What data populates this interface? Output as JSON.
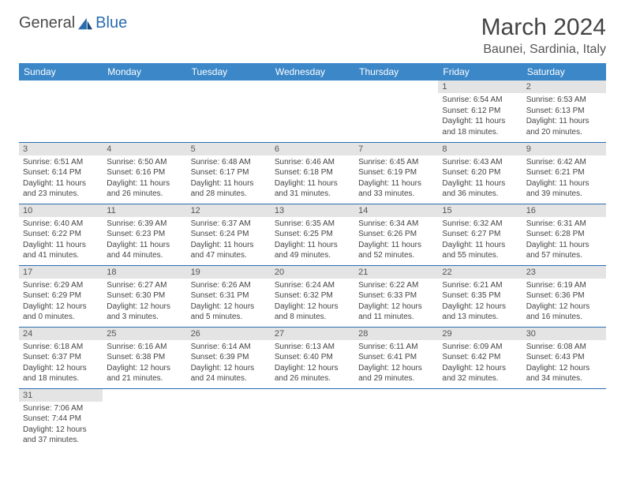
{
  "logo": {
    "part1": "General",
    "part2": "Blue"
  },
  "title": "March 2024",
  "location": "Baunei, Sardinia, Italy",
  "colors": {
    "header_bg": "#3b87c8",
    "header_text": "#ffffff",
    "daynum_bg": "#e4e4e4",
    "border": "#2a6cb0",
    "logo_blue": "#2a6cb0"
  },
  "day_headers": [
    "Sunday",
    "Monday",
    "Tuesday",
    "Wednesday",
    "Thursday",
    "Friday",
    "Saturday"
  ],
  "weeks": [
    [
      null,
      null,
      null,
      null,
      null,
      {
        "n": "1",
        "sr": "Sunrise: 6:54 AM",
        "ss": "Sunset: 6:12 PM",
        "dl1": "Daylight: 11 hours",
        "dl2": "and 18 minutes."
      },
      {
        "n": "2",
        "sr": "Sunrise: 6:53 AM",
        "ss": "Sunset: 6:13 PM",
        "dl1": "Daylight: 11 hours",
        "dl2": "and 20 minutes."
      }
    ],
    [
      {
        "n": "3",
        "sr": "Sunrise: 6:51 AM",
        "ss": "Sunset: 6:14 PM",
        "dl1": "Daylight: 11 hours",
        "dl2": "and 23 minutes."
      },
      {
        "n": "4",
        "sr": "Sunrise: 6:50 AM",
        "ss": "Sunset: 6:16 PM",
        "dl1": "Daylight: 11 hours",
        "dl2": "and 26 minutes."
      },
      {
        "n": "5",
        "sr": "Sunrise: 6:48 AM",
        "ss": "Sunset: 6:17 PM",
        "dl1": "Daylight: 11 hours",
        "dl2": "and 28 minutes."
      },
      {
        "n": "6",
        "sr": "Sunrise: 6:46 AM",
        "ss": "Sunset: 6:18 PM",
        "dl1": "Daylight: 11 hours",
        "dl2": "and 31 minutes."
      },
      {
        "n": "7",
        "sr": "Sunrise: 6:45 AM",
        "ss": "Sunset: 6:19 PM",
        "dl1": "Daylight: 11 hours",
        "dl2": "and 33 minutes."
      },
      {
        "n": "8",
        "sr": "Sunrise: 6:43 AM",
        "ss": "Sunset: 6:20 PM",
        "dl1": "Daylight: 11 hours",
        "dl2": "and 36 minutes."
      },
      {
        "n": "9",
        "sr": "Sunrise: 6:42 AM",
        "ss": "Sunset: 6:21 PM",
        "dl1": "Daylight: 11 hours",
        "dl2": "and 39 minutes."
      }
    ],
    [
      {
        "n": "10",
        "sr": "Sunrise: 6:40 AM",
        "ss": "Sunset: 6:22 PM",
        "dl1": "Daylight: 11 hours",
        "dl2": "and 41 minutes."
      },
      {
        "n": "11",
        "sr": "Sunrise: 6:39 AM",
        "ss": "Sunset: 6:23 PM",
        "dl1": "Daylight: 11 hours",
        "dl2": "and 44 minutes."
      },
      {
        "n": "12",
        "sr": "Sunrise: 6:37 AM",
        "ss": "Sunset: 6:24 PM",
        "dl1": "Daylight: 11 hours",
        "dl2": "and 47 minutes."
      },
      {
        "n": "13",
        "sr": "Sunrise: 6:35 AM",
        "ss": "Sunset: 6:25 PM",
        "dl1": "Daylight: 11 hours",
        "dl2": "and 49 minutes."
      },
      {
        "n": "14",
        "sr": "Sunrise: 6:34 AM",
        "ss": "Sunset: 6:26 PM",
        "dl1": "Daylight: 11 hours",
        "dl2": "and 52 minutes."
      },
      {
        "n": "15",
        "sr": "Sunrise: 6:32 AM",
        "ss": "Sunset: 6:27 PM",
        "dl1": "Daylight: 11 hours",
        "dl2": "and 55 minutes."
      },
      {
        "n": "16",
        "sr": "Sunrise: 6:31 AM",
        "ss": "Sunset: 6:28 PM",
        "dl1": "Daylight: 11 hours",
        "dl2": "and 57 minutes."
      }
    ],
    [
      {
        "n": "17",
        "sr": "Sunrise: 6:29 AM",
        "ss": "Sunset: 6:29 PM",
        "dl1": "Daylight: 12 hours",
        "dl2": "and 0 minutes."
      },
      {
        "n": "18",
        "sr": "Sunrise: 6:27 AM",
        "ss": "Sunset: 6:30 PM",
        "dl1": "Daylight: 12 hours",
        "dl2": "and 3 minutes."
      },
      {
        "n": "19",
        "sr": "Sunrise: 6:26 AM",
        "ss": "Sunset: 6:31 PM",
        "dl1": "Daylight: 12 hours",
        "dl2": "and 5 minutes."
      },
      {
        "n": "20",
        "sr": "Sunrise: 6:24 AM",
        "ss": "Sunset: 6:32 PM",
        "dl1": "Daylight: 12 hours",
        "dl2": "and 8 minutes."
      },
      {
        "n": "21",
        "sr": "Sunrise: 6:22 AM",
        "ss": "Sunset: 6:33 PM",
        "dl1": "Daylight: 12 hours",
        "dl2": "and 11 minutes."
      },
      {
        "n": "22",
        "sr": "Sunrise: 6:21 AM",
        "ss": "Sunset: 6:35 PM",
        "dl1": "Daylight: 12 hours",
        "dl2": "and 13 minutes."
      },
      {
        "n": "23",
        "sr": "Sunrise: 6:19 AM",
        "ss": "Sunset: 6:36 PM",
        "dl1": "Daylight: 12 hours",
        "dl2": "and 16 minutes."
      }
    ],
    [
      {
        "n": "24",
        "sr": "Sunrise: 6:18 AM",
        "ss": "Sunset: 6:37 PM",
        "dl1": "Daylight: 12 hours",
        "dl2": "and 18 minutes."
      },
      {
        "n": "25",
        "sr": "Sunrise: 6:16 AM",
        "ss": "Sunset: 6:38 PM",
        "dl1": "Daylight: 12 hours",
        "dl2": "and 21 minutes."
      },
      {
        "n": "26",
        "sr": "Sunrise: 6:14 AM",
        "ss": "Sunset: 6:39 PM",
        "dl1": "Daylight: 12 hours",
        "dl2": "and 24 minutes."
      },
      {
        "n": "27",
        "sr": "Sunrise: 6:13 AM",
        "ss": "Sunset: 6:40 PM",
        "dl1": "Daylight: 12 hours",
        "dl2": "and 26 minutes."
      },
      {
        "n": "28",
        "sr": "Sunrise: 6:11 AM",
        "ss": "Sunset: 6:41 PM",
        "dl1": "Daylight: 12 hours",
        "dl2": "and 29 minutes."
      },
      {
        "n": "29",
        "sr": "Sunrise: 6:09 AM",
        "ss": "Sunset: 6:42 PM",
        "dl1": "Daylight: 12 hours",
        "dl2": "and 32 minutes."
      },
      {
        "n": "30",
        "sr": "Sunrise: 6:08 AM",
        "ss": "Sunset: 6:43 PM",
        "dl1": "Daylight: 12 hours",
        "dl2": "and 34 minutes."
      }
    ],
    [
      {
        "n": "31",
        "sr": "Sunrise: 7:06 AM",
        "ss": "Sunset: 7:44 PM",
        "dl1": "Daylight: 12 hours",
        "dl2": "and 37 minutes."
      },
      null,
      null,
      null,
      null,
      null,
      null
    ]
  ]
}
